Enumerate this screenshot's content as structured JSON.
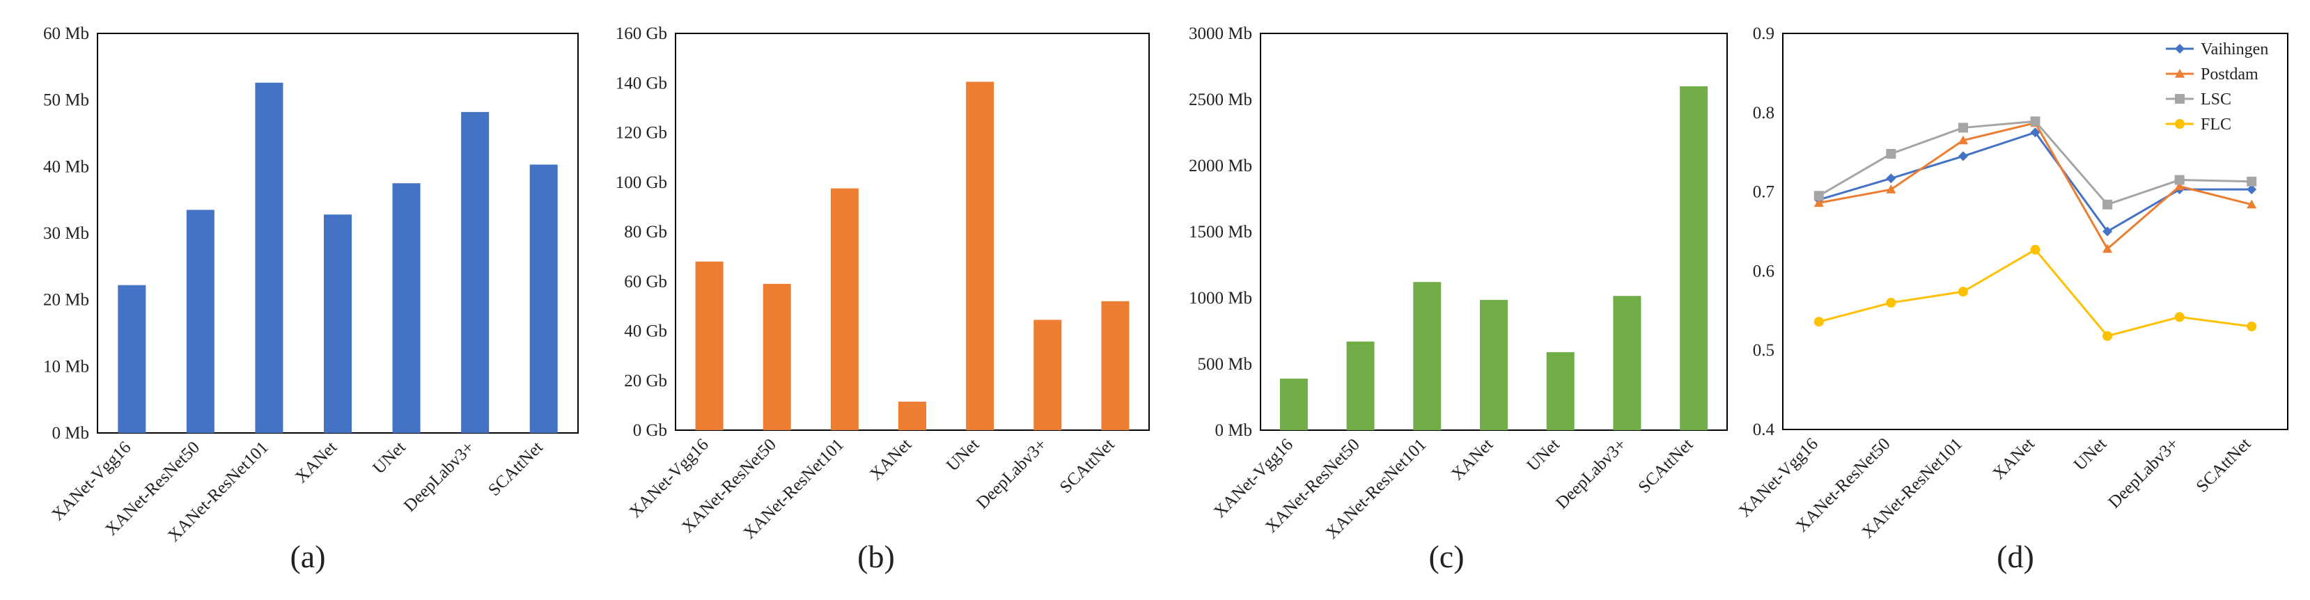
{
  "chart_data": [
    {
      "type": "bar",
      "caption": "(a)",
      "color": "#4472C4",
      "categories": [
        "XANet-Vgg16",
        "XANet-ResNet50",
        "XANet-ResNet101",
        "XANet",
        "UNet",
        "DeepLabv3+",
        "SCAttNet"
      ],
      "values": [
        22.2,
        33.5,
        52.6,
        32.8,
        37.5,
        48.2,
        40.3
      ],
      "unit": "Mb",
      "ylim": [
        0,
        60
      ],
      "ytick_step": 10,
      "ytick_labels": [
        "0 Mb",
        "10 Mb",
        "20 Mb",
        "30 Mb",
        "40 Mb",
        "50 Mb",
        "60 Mb"
      ],
      "grid": false
    },
    {
      "type": "bar",
      "caption": "(b)",
      "color": "#ED7D31",
      "categories": [
        "XANet-Vgg16",
        "XANet-ResNet50",
        "XANet-ResNet101",
        "XANet",
        "UNet",
        "DeepLabv3+",
        "SCAttNet"
      ],
      "values": [
        68,
        59,
        97.5,
        11.5,
        140.5,
        44.5,
        52
      ],
      "unit": "Gb",
      "ylim": [
        0,
        160
      ],
      "ytick_step": 20,
      "ytick_labels": [
        "0 Gb",
        "20 Gb",
        "40 Gb",
        "60 Gb",
        "80 Gb",
        "100 Gb",
        "120 Gb",
        "140 Gb",
        "160 Gb"
      ],
      "grid": false
    },
    {
      "type": "bar",
      "caption": "(c)",
      "color": "#70AD47",
      "categories": [
        "XANet-Vgg16",
        "XANet-ResNet50",
        "XANet-ResNet101",
        "XANet",
        "UNet",
        "DeepLabv3+",
        "SCAttNet"
      ],
      "values": [
        390,
        670,
        1120,
        985,
        590,
        1015,
        2600
      ],
      "unit": "Mb",
      "ylim": [
        0,
        3000
      ],
      "ytick_step": 500,
      "ytick_labels": [
        "0 Mb",
        "500 Mb",
        "1000 Mb",
        "1500 Mb",
        "2000 Mb",
        "2500 Mb",
        "3000 Mb"
      ],
      "grid": false
    },
    {
      "type": "line",
      "caption": "(d)",
      "categories": [
        "XANet-Vgg16",
        "XANet-ResNet50",
        "XANet-ResNet101",
        "XANet",
        "UNet",
        "DeepLabv3+",
        "SCAttNet"
      ],
      "ylim": [
        0.4,
        0.9
      ],
      "ytick_step": 0.1,
      "ytick_labels": [
        "0.4",
        "0.5",
        "0.6",
        "0.7",
        "0.8",
        "0.9"
      ],
      "legend_position": "top-right",
      "grid": false,
      "series": [
        {
          "name": "Vaihingen",
          "color": "#4472C4",
          "marker": "diamond",
          "values": [
            0.69,
            0.717,
            0.745,
            0.775,
            0.65,
            0.703,
            0.703
          ]
        },
        {
          "name": "Postdam",
          "color": "#ED7D31",
          "marker": "triangle",
          "values": [
            0.686,
            0.703,
            0.765,
            0.787,
            0.628,
            0.707,
            0.684
          ]
        },
        {
          "name": "LSC",
          "color": "#A5A5A5",
          "marker": "square",
          "values": [
            0.695,
            0.748,
            0.781,
            0.789,
            0.684,
            0.715,
            0.713
          ]
        },
        {
          "name": "FLC",
          "color": "#FFC000",
          "marker": "circle",
          "values": [
            0.536,
            0.56,
            0.574,
            0.627,
            0.518,
            0.542,
            0.53
          ]
        }
      ]
    }
  ]
}
